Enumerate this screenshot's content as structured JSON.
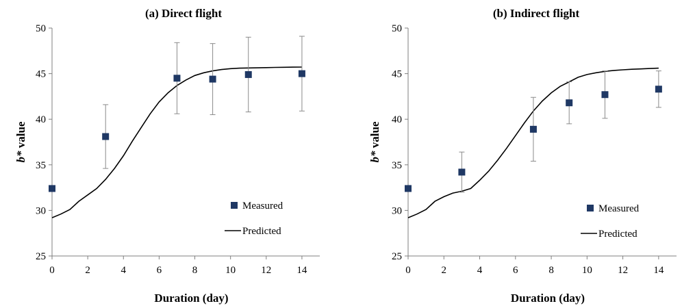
{
  "chart_data": [
    {
      "type": "scatter",
      "title": "(a) Direct flight",
      "xlabel": "Duration (day)",
      "ylabel_italic": "b*",
      "ylabel_rest": " value",
      "xlim": [
        0,
        15
      ],
      "ylim": [
        25,
        50
      ],
      "xticks": [
        0,
        2,
        4,
        6,
        8,
        10,
        12,
        14
      ],
      "yticks": [
        25,
        30,
        35,
        40,
        45,
        50
      ],
      "legend": {
        "position": "bottom-right",
        "entries": [
          "Measured",
          "Predicted"
        ]
      },
      "series": [
        {
          "name": "Measured",
          "kind": "markers",
          "color": "#1f3864",
          "points": [
            {
              "x": 0,
              "y": 32.4,
              "err": 0
            },
            {
              "x": 3,
              "y": 38.1,
              "err": 3.5
            },
            {
              "x": 7,
              "y": 44.5,
              "err": 3.9
            },
            {
              "x": 9,
              "y": 44.4,
              "err": 3.9
            },
            {
              "x": 11,
              "y": 44.9,
              "err": 4.1
            },
            {
              "x": 14,
              "y": 45.0,
              "err": 4.1
            }
          ]
        },
        {
          "name": "Predicted",
          "kind": "line",
          "color": "#000000",
          "x": [
            0,
            0.5,
            1,
            1.5,
            2,
            2.5,
            3,
            3.5,
            4,
            4.5,
            5,
            5.5,
            6,
            6.5,
            7,
            7.5,
            8,
            8.5,
            9,
            9.5,
            10,
            10.5,
            11,
            11.5,
            12,
            12.5,
            13,
            13.5,
            14
          ],
          "y": [
            29.2,
            29.6,
            30.1,
            31.0,
            31.7,
            32.4,
            33.4,
            34.6,
            36.0,
            37.6,
            39.1,
            40.6,
            41.9,
            42.9,
            43.7,
            44.3,
            44.8,
            45.1,
            45.3,
            45.45,
            45.55,
            45.6,
            45.62,
            45.64,
            45.66,
            45.68,
            45.7,
            45.71,
            45.72
          ]
        }
      ]
    },
    {
      "type": "scatter",
      "title": "(b) Indirect flight",
      "xlabel": "Duration (day)",
      "ylabel_italic": "b*",
      "ylabel_rest": " value",
      "xlim": [
        0,
        15
      ],
      "ylim": [
        25,
        50
      ],
      "xticks": [
        0,
        2,
        4,
        6,
        8,
        10,
        12,
        14
      ],
      "yticks": [
        25,
        30,
        35,
        40,
        45,
        50
      ],
      "legend": {
        "position": "bottom-right",
        "entries": [
          "Measured",
          "Predicted"
        ]
      },
      "series": [
        {
          "name": "Measured",
          "kind": "markers",
          "color": "#1f3864",
          "points": [
            {
              "x": 0,
              "y": 32.4,
              "err": 0
            },
            {
              "x": 3,
              "y": 34.2,
              "err": 2.2
            },
            {
              "x": 7,
              "y": 38.9,
              "err": 3.5
            },
            {
              "x": 9,
              "y": 41.8,
              "err": 2.3
            },
            {
              "x": 11,
              "y": 42.7,
              "err": 2.6
            },
            {
              "x": 14,
              "y": 43.3,
              "err": 2.0
            }
          ]
        },
        {
          "name": "Predicted",
          "kind": "line",
          "color": "#000000",
          "x": [
            0,
            0.5,
            1,
            1.5,
            2,
            2.5,
            3,
            3.5,
            4,
            4.5,
            5,
            5.5,
            6,
            6.5,
            7,
            7.5,
            8,
            8.5,
            9,
            9.5,
            10,
            10.5,
            11,
            11.5,
            12,
            12.5,
            13,
            13.5,
            14
          ],
          "y": [
            29.2,
            29.6,
            30.1,
            31.0,
            31.5,
            31.9,
            32.1,
            32.4,
            33.3,
            34.3,
            35.5,
            36.8,
            38.2,
            39.6,
            40.9,
            42.0,
            42.9,
            43.6,
            44.1,
            44.6,
            44.9,
            45.1,
            45.25,
            45.35,
            45.42,
            45.48,
            45.52,
            45.56,
            45.6
          ]
        }
      ]
    }
  ]
}
